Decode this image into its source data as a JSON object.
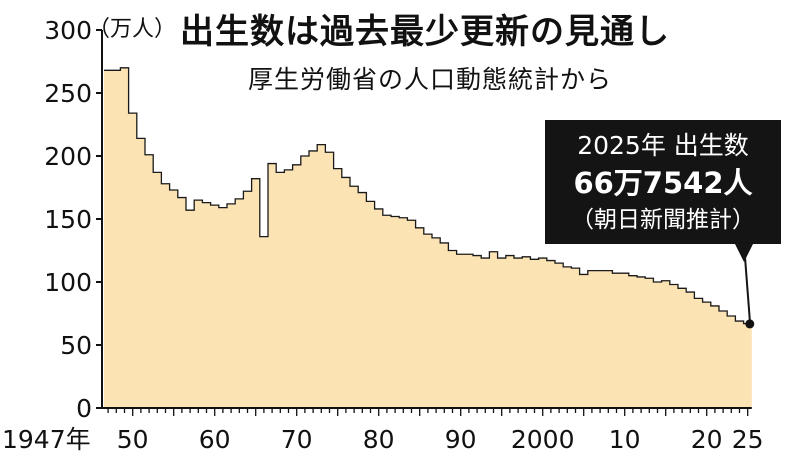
{
  "title": "出生数は過去最少更新の見通し",
  "subtitle": "厚生労働省の人口動態統計から",
  "callout": {
    "line1": "2025年 出生数",
    "line2": "66万7542人",
    "line3": "（朝日新聞推計）"
  },
  "chart_data": {
    "type": "area",
    "ylabel": "（万人）",
    "ylim": [
      0,
      300
    ],
    "y_ticks": [
      "0",
      "50",
      "100",
      "150",
      "200",
      "250",
      "300"
    ],
    "x_ticks": [
      {
        "year": 1947,
        "label": "1947年"
      },
      {
        "year": 1950,
        "label": "50"
      },
      {
        "year": 1960,
        "label": "60"
      },
      {
        "year": 1970,
        "label": "70"
      },
      {
        "year": 1980,
        "label": "80"
      },
      {
        "year": 1990,
        "label": "90"
      },
      {
        "year": 2000,
        "label": "2000"
      },
      {
        "year": 2010,
        "label": "10"
      },
      {
        "year": 2020,
        "label": "20"
      },
      {
        "year": 2025,
        "label": "25"
      }
    ],
    "x": [
      1947,
      1948,
      1949,
      1950,
      1951,
      1952,
      1953,
      1954,
      1955,
      1956,
      1957,
      1958,
      1959,
      1960,
      1961,
      1962,
      1963,
      1964,
      1965,
      1966,
      1967,
      1968,
      1969,
      1970,
      1971,
      1972,
      1973,
      1974,
      1975,
      1976,
      1977,
      1978,
      1979,
      1980,
      1981,
      1982,
      1983,
      1984,
      1985,
      1986,
      1987,
      1988,
      1989,
      1990,
      1991,
      1992,
      1993,
      1994,
      1995,
      1996,
      1997,
      1998,
      1999,
      2000,
      2001,
      2002,
      2003,
      2004,
      2005,
      2006,
      2007,
      2008,
      2009,
      2010,
      2011,
      2012,
      2013,
      2014,
      2015,
      2016,
      2017,
      2018,
      2019,
      2020,
      2021,
      2022,
      2023,
      2024,
      2025
    ],
    "values": [
      268,
      268,
      270,
      234,
      214,
      201,
      187,
      178,
      173,
      167,
      157,
      165,
      163,
      161,
      159,
      162,
      166,
      172,
      182,
      136,
      194,
      187,
      189,
      193,
      200,
      204,
      209,
      203,
      190,
      183,
      176,
      171,
      164,
      158,
      153,
      152,
      151,
      149,
      143,
      138,
      135,
      131,
      125,
      122,
      122,
      121,
      119,
      124,
      119,
      121,
      119,
      120,
      118,
      119,
      117,
      115,
      112,
      111,
      106,
      109,
      109,
      109,
      107,
      107,
      105,
      104,
      103,
      100,
      101,
      98,
      95,
      92,
      87,
      84,
      81,
      77,
      73,
      69,
      67
    ],
    "highlight": {
      "year": 2025,
      "value": 66.7542
    }
  },
  "colors": {
    "area_fill": "#fbe3b3",
    "area_stroke": "#1a1a1a",
    "axis": "#111111",
    "callout_bg": "#141414"
  }
}
